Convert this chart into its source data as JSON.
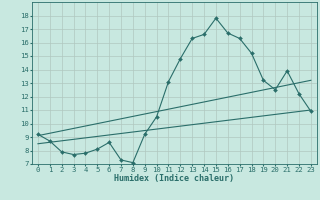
{
  "title": "",
  "xlabel": "Humidex (Indice chaleur)",
  "ylabel": "",
  "xlim": [
    -0.5,
    23.5
  ],
  "ylim": [
    7,
    19
  ],
  "xticks": [
    0,
    1,
    2,
    3,
    4,
    5,
    6,
    7,
    8,
    9,
    10,
    11,
    12,
    13,
    14,
    15,
    16,
    17,
    18,
    19,
    20,
    21,
    22,
    23
  ],
  "yticks": [
    7,
    8,
    9,
    10,
    11,
    12,
    13,
    14,
    15,
    16,
    17,
    18
  ],
  "bg_color": "#c8e8e0",
  "grid_color": "#b0c8c0",
  "line_color": "#2a6e6a",
  "line1_x": [
    0,
    1,
    2,
    3,
    4,
    5,
    6,
    7,
    8,
    9,
    10,
    11,
    12,
    13,
    14,
    15,
    16,
    17,
    18,
    19,
    20,
    21,
    22,
    23
  ],
  "line1_y": [
    9.2,
    8.7,
    7.9,
    7.7,
    7.8,
    8.1,
    8.6,
    7.3,
    7.1,
    9.2,
    10.5,
    13.1,
    14.8,
    16.3,
    16.6,
    17.8,
    16.7,
    16.3,
    15.2,
    13.2,
    12.5,
    13.9,
    12.2,
    10.9
  ],
  "line2_x": [
    0,
    23
  ],
  "line2_y": [
    8.5,
    11.0
  ],
  "line3_x": [
    0,
    23
  ],
  "line3_y": [
    9.1,
    13.2
  ],
  "tick_fontsize": 5.2,
  "xlabel_fontsize": 6.0
}
